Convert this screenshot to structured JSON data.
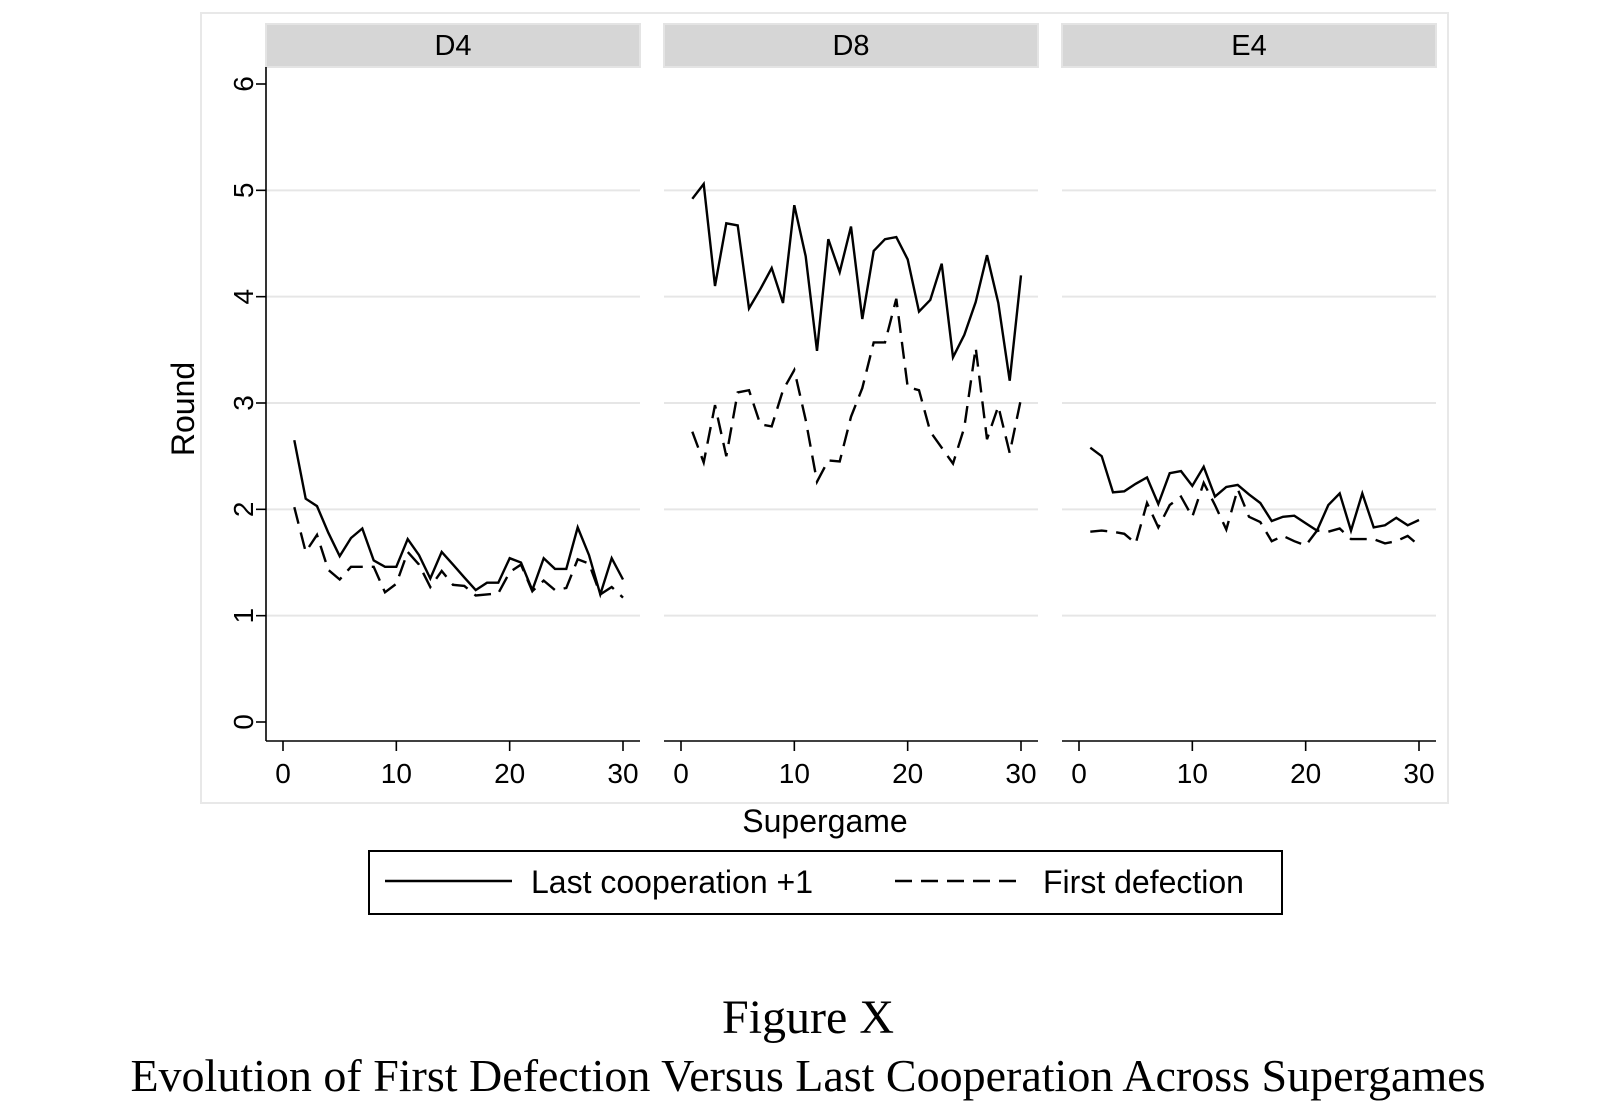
{
  "caption": {
    "figure_label": "Figure X",
    "title": "Evolution of First Defection Versus Last Cooperation Across Supergames"
  },
  "chart_data": {
    "type": "line",
    "ylabel": "Round",
    "xlabel": "Supergame",
    "ylim": [
      0,
      6
    ],
    "xlim": [
      0,
      30
    ],
    "yticks": [
      "0",
      "1",
      "2",
      "3",
      "4",
      "5",
      "6"
    ],
    "xticks": [
      "0",
      "10",
      "20",
      "30"
    ],
    "grid": "horizontal",
    "legend_position": "bottom",
    "legend": [
      {
        "label": "Last cooperation +1",
        "style": "solid"
      },
      {
        "label": "First defection",
        "style": "dashed"
      }
    ],
    "colors": {
      "series": "#000000",
      "strip": "#d6d6d6",
      "grid": "#e6e6e6",
      "frame": "#e8e8e8"
    },
    "panels": [
      {
        "title": "D4",
        "series": [
          {
            "name": "Last cooperation +1",
            "x": [
              1,
              2,
              3,
              4,
              5,
              6,
              7,
              8,
              9,
              10,
              11,
              12,
              13,
              14,
              15,
              16,
              17,
              18,
              19,
              20,
              21,
              22,
              23,
              24,
              25,
              26,
              27,
              28,
              29,
              30
            ],
            "values": [
              2.65,
              2.1,
              2.03,
              1.78,
              1.56,
              1.73,
              1.82,
              1.52,
              1.46,
              1.46,
              1.72,
              1.57,
              1.35,
              1.6,
              1.48,
              1.36,
              1.24,
              1.31,
              1.31,
              1.54,
              1.5,
              1.24,
              1.54,
              1.44,
              1.44,
              1.83,
              1.57,
              1.2,
              1.54,
              1.34
            ]
          },
          {
            "name": "First defection",
            "x": [
              1,
              2,
              3,
              4,
              5,
              6,
              7,
              8,
              9,
              10,
              11,
              12,
              13,
              14,
              15,
              16,
              17,
              18,
              19,
              20,
              21,
              22,
              23,
              24,
              25,
              26,
              27,
              28,
              29,
              30
            ],
            "values": [
              2.02,
              1.6,
              1.76,
              1.43,
              1.34,
              1.46,
              1.46,
              1.46,
              1.22,
              1.3,
              1.6,
              1.48,
              1.27,
              1.42,
              1.29,
              1.28,
              1.19,
              1.2,
              1.21,
              1.41,
              1.48,
              1.23,
              1.33,
              1.24,
              1.26,
              1.53,
              1.49,
              1.2,
              1.27,
              1.17
            ]
          }
        ]
      },
      {
        "title": "D8",
        "series": [
          {
            "name": "Last cooperation +1",
            "x": [
              1,
              2,
              3,
              4,
              5,
              6,
              7,
              8,
              9,
              10,
              11,
              12,
              13,
              14,
              15,
              16,
              17,
              18,
              19,
              20,
              21,
              22,
              23,
              24,
              25,
              26,
              27,
              28,
              29,
              30
            ],
            "values": [
              4.92,
              5.06,
              4.1,
              4.69,
              4.67,
              3.89,
              4.07,
              4.27,
              3.94,
              4.86,
              4.38,
              3.49,
              4.54,
              4.23,
              4.66,
              3.79,
              4.43,
              4.54,
              4.56,
              4.35,
              3.86,
              3.97,
              4.31,
              3.43,
              3.64,
              3.95,
              4.39,
              3.94,
              3.21,
              4.2
            ]
          },
          {
            "name": "First defection",
            "x": [
              1,
              2,
              3,
              4,
              5,
              6,
              7,
              8,
              9,
              10,
              11,
              12,
              13,
              14,
              15,
              16,
              17,
              18,
              19,
              20,
              21,
              22,
              23,
              24,
              25,
              26,
              27,
              28,
              29,
              30
            ],
            "values": [
              2.73,
              2.44,
              2.98,
              2.5,
              3.1,
              3.12,
              2.8,
              2.78,
              3.12,
              3.31,
              2.84,
              2.26,
              2.46,
              2.45,
              2.87,
              3.14,
              3.57,
              3.57,
              3.98,
              3.15,
              3.12,
              2.73,
              2.58,
              2.43,
              2.77,
              3.52,
              2.66,
              2.97,
              2.53,
              3.04
            ]
          }
        ]
      },
      {
        "title": "E4",
        "series": [
          {
            "name": "Last cooperation +1",
            "x": [
              1,
              2,
              3,
              4,
              5,
              6,
              7,
              8,
              9,
              10,
              11,
              12,
              13,
              14,
              15,
              16,
              17,
              18,
              19,
              20,
              21,
              22,
              23,
              24,
              25,
              26,
              27,
              28,
              29,
              30
            ],
            "values": [
              2.58,
              2.5,
              2.16,
              2.17,
              2.24,
              2.3,
              2.05,
              2.34,
              2.36,
              2.22,
              2.4,
              2.12,
              2.21,
              2.23,
              2.14,
              2.06,
              1.89,
              1.93,
              1.94,
              1.87,
              1.8,
              2.04,
              2.15,
              1.8,
              2.15,
              1.83,
              1.85,
              1.92,
              1.85,
              1.9
            ]
          },
          {
            "name": "First defection",
            "x": [
              1,
              2,
              3,
              4,
              5,
              6,
              7,
              8,
              9,
              10,
              11,
              12,
              13,
              14,
              15,
              16,
              17,
              18,
              19,
              20,
              21,
              22,
              23,
              24,
              25,
              26,
              27,
              28,
              29,
              30
            ],
            "values": [
              1.79,
              1.8,
              1.79,
              1.77,
              1.68,
              2.06,
              1.83,
              2.04,
              2.12,
              1.93,
              2.25,
              2.04,
              1.81,
              2.19,
              1.93,
              1.88,
              1.7,
              1.75,
              1.7,
              1.66,
              1.8,
              1.79,
              1.82,
              1.72,
              1.72,
              1.72,
              1.68,
              1.7,
              1.75,
              1.66
            ]
          }
        ]
      }
    ]
  }
}
